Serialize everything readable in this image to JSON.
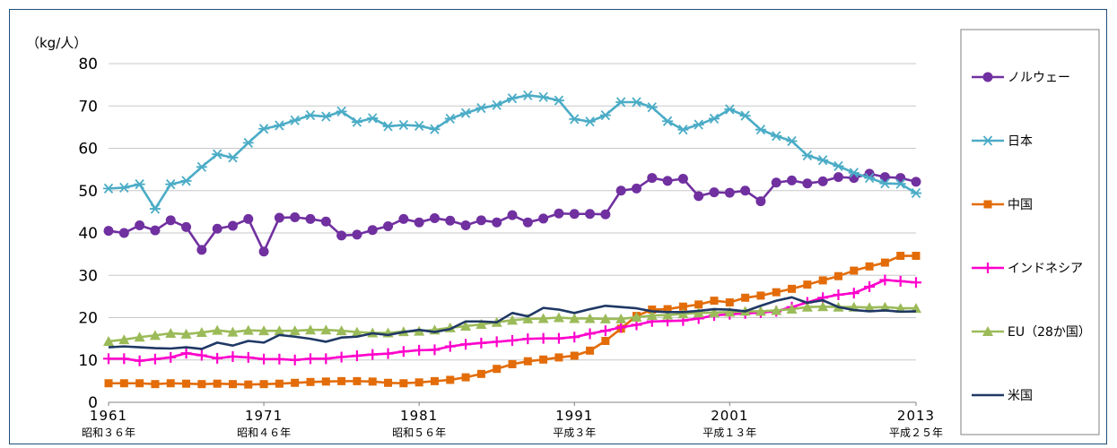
{
  "chart_data": {
    "type": "line",
    "unit_label": "（kg/人）",
    "ylim": [
      0,
      80
    ],
    "yticks": [
      0,
      10,
      20,
      30,
      40,
      50,
      60,
      70,
      80
    ],
    "xlim": [
      1961,
      2013
    ],
    "grid": true,
    "legend_position": "right",
    "x_tick_labels": [
      {
        "year": 1961,
        "label": "1961",
        "sub": "昭和３６年"
      },
      {
        "year": 1971,
        "label": "1971",
        "sub": "昭和４６年"
      },
      {
        "year": 1981,
        "label": "1981",
        "sub": "昭和５６年"
      },
      {
        "year": 1991,
        "label": "1991",
        "sub": "平成３年"
      },
      {
        "year": 2001,
        "label": "2001",
        "sub": "平成１３年"
      },
      {
        "year": 2013,
        "label": "2013",
        "sub": "平成２５年"
      }
    ],
    "x": [
      1961,
      1962,
      1963,
      1964,
      1965,
      1966,
      1967,
      1968,
      1969,
      1970,
      1971,
      1972,
      1973,
      1974,
      1975,
      1976,
      1977,
      1978,
      1979,
      1980,
      1981,
      1982,
      1983,
      1984,
      1985,
      1986,
      1987,
      1988,
      1989,
      1990,
      1991,
      1992,
      1993,
      1994,
      1995,
      1996,
      1997,
      1998,
      1999,
      2000,
      2001,
      2002,
      2003,
      2004,
      2005,
      2006,
      2007,
      2008,
      2009,
      2010,
      2011,
      2012,
      2013
    ],
    "series": [
      {
        "name": "ノルウェー",
        "color": "#7030a0",
        "marker": "circle",
        "values": [
          40.5,
          40,
          41.8,
          40.6,
          43,
          41.4,
          36,
          41,
          41.7,
          43.3,
          35.6,
          43.6,
          43.7,
          43.3,
          42.7,
          39.4,
          39.6,
          40.7,
          41.6,
          43.3,
          42.5,
          43.5,
          42.9,
          41.8,
          43,
          42.5,
          44.2,
          42.5,
          43.4,
          44.6,
          44.5,
          44.5,
          44.4,
          50,
          50.5,
          53,
          52.3,
          52.8,
          48.7,
          49.6,
          49.5,
          50,
          47.5,
          51.9,
          52.4,
          51.7,
          52.2,
          53.2,
          53,
          54,
          53.2,
          53,
          52.1
        ]
      },
      {
        "name": "日本",
        "color": "#4bacc6",
        "marker": "asterisk",
        "values": [
          50.5,
          50.7,
          51.5,
          45.7,
          51.5,
          52.3,
          55.6,
          58.6,
          57.8,
          61.3,
          64.6,
          65.4,
          66.6,
          67.8,
          67.5,
          68.7,
          66.2,
          67.1,
          65.2,
          65.5,
          65.3,
          64.5,
          67,
          68.3,
          69.5,
          70.2,
          71.8,
          72.5,
          72.1,
          71.3,
          66.9,
          66.3,
          67.8,
          70.9,
          70.9,
          69.7,
          66.4,
          64.4,
          65.6,
          67,
          69.2,
          67.7,
          64.4,
          62.9,
          61.7,
          58.3,
          57.2,
          55.8,
          54.2,
          53,
          51.7,
          51.6,
          49.4
        ]
      },
      {
        "name": "中国",
        "color": "#e36c09",
        "marker": "square",
        "values": [
          4.5,
          4.5,
          4.5,
          4.3,
          4.5,
          4.4,
          4.3,
          4.4,
          4.3,
          4.2,
          4.3,
          4.4,
          4.6,
          4.8,
          4.9,
          5,
          5,
          4.9,
          4.6,
          4.5,
          4.7,
          5,
          5.3,
          5.9,
          6.7,
          7.9,
          9,
          9.7,
          10.1,
          10.6,
          11,
          12.2,
          14.5,
          17.4,
          20.4,
          21.9,
          22,
          22.6,
          23.1,
          24,
          23.6,
          24.7,
          25.2,
          26,
          26.8,
          27.8,
          28.8,
          29.8,
          31.1,
          32.1,
          33,
          34.6,
          34.6
        ]
      },
      {
        "name": "インドネシア",
        "color": "#ff00cc",
        "marker": "plus",
        "values": [
          10.3,
          10.3,
          9.8,
          10.2,
          10.6,
          11.6,
          11.1,
          10.4,
          10.8,
          10.6,
          10.2,
          10.2,
          10,
          10.3,
          10.3,
          10.7,
          11,
          11.3,
          11.5,
          12,
          12.3,
          12.4,
          13.2,
          13.7,
          14,
          14.3,
          14.6,
          15,
          15.1,
          15.1,
          15.4,
          16.2,
          16.9,
          17.7,
          18.3,
          19.1,
          19.2,
          19.3,
          19.8,
          20.5,
          20.8,
          21,
          21.2,
          21.5,
          22.5,
          23.6,
          24.7,
          25.4,
          25.8,
          27.3,
          28.9,
          28.6,
          28.3
        ]
      },
      {
        "name": "EU（28か国）",
        "color": "#9bbb59",
        "marker": "triangle",
        "values": [
          14.4,
          14.8,
          15.4,
          15.8,
          16.3,
          16.1,
          16.5,
          17,
          16.6,
          17,
          16.9,
          16.9,
          16.9,
          17.1,
          17.1,
          16.9,
          16.6,
          16.4,
          16.4,
          16.7,
          16.8,
          17.1,
          17.6,
          18,
          18.4,
          18.9,
          19.4,
          19.7,
          19.8,
          20,
          19.8,
          19.8,
          19.7,
          19.7,
          20.1,
          20.5,
          20.6,
          20.9,
          21.1,
          21.2,
          21.3,
          21.5,
          21.5,
          21.7,
          22,
          22.5,
          22.6,
          22.5,
          22.5,
          22.4,
          22.5,
          22.2,
          22.2
        ]
      },
      {
        "name": "米国",
        "color": "#1f3864",
        "marker": "none",
        "values": [
          13,
          13.2,
          13,
          12.8,
          12.7,
          13,
          12.6,
          14.1,
          13.4,
          14.5,
          14.1,
          15.9,
          15.5,
          15,
          14.3,
          15.3,
          15.5,
          16.3,
          15.9,
          16.6,
          17.1,
          16.6,
          17.3,
          19.1,
          19.1,
          18.9,
          21.1,
          20.3,
          22.3,
          21.9,
          21.1,
          22,
          22.8,
          22.5,
          22.2,
          21.5,
          21.3,
          21.3,
          21.6,
          22,
          21.9,
          21.5,
          22.8,
          24,
          24.8,
          23.5,
          24.1,
          22.5,
          21.8,
          21.5,
          21.7,
          21.4,
          21.5
        ]
      }
    ]
  }
}
